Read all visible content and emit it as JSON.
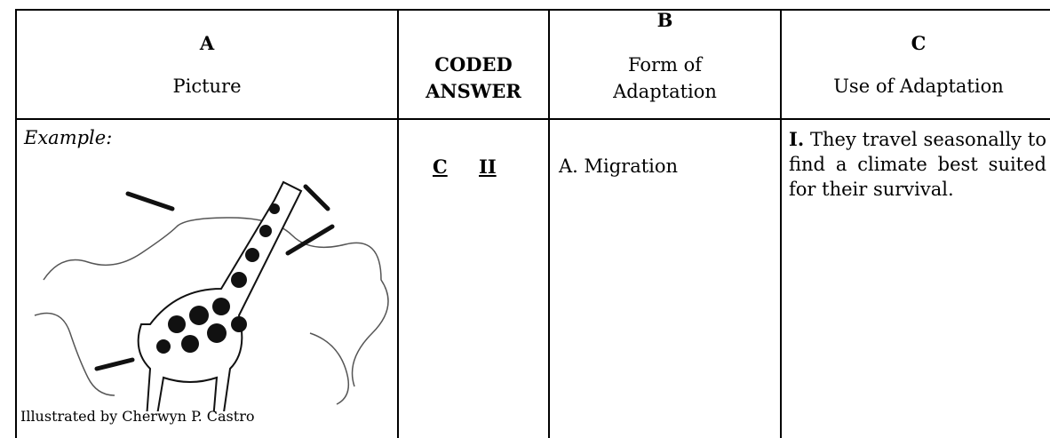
{
  "table": {
    "header": [
      [
        "A",
        "Picture"
      ],
      [
        "CODED",
        "ANSWER"
      ],
      [
        "B",
        "Form of",
        "Adaptation"
      ],
      [
        "C",
        "Use of Adaptation"
      ]
    ],
    "rows": [
      {
        "example_label": "Example:",
        "credit": "Illustrated by Cherwyn P. Castro",
        "coded": [
          "C",
          "II"
        ],
        "form": "A. Migration",
        "use_numeral": "I.",
        "use_text": "They travel seasonally to find a climate best suited for their survival."
      }
    ]
  }
}
